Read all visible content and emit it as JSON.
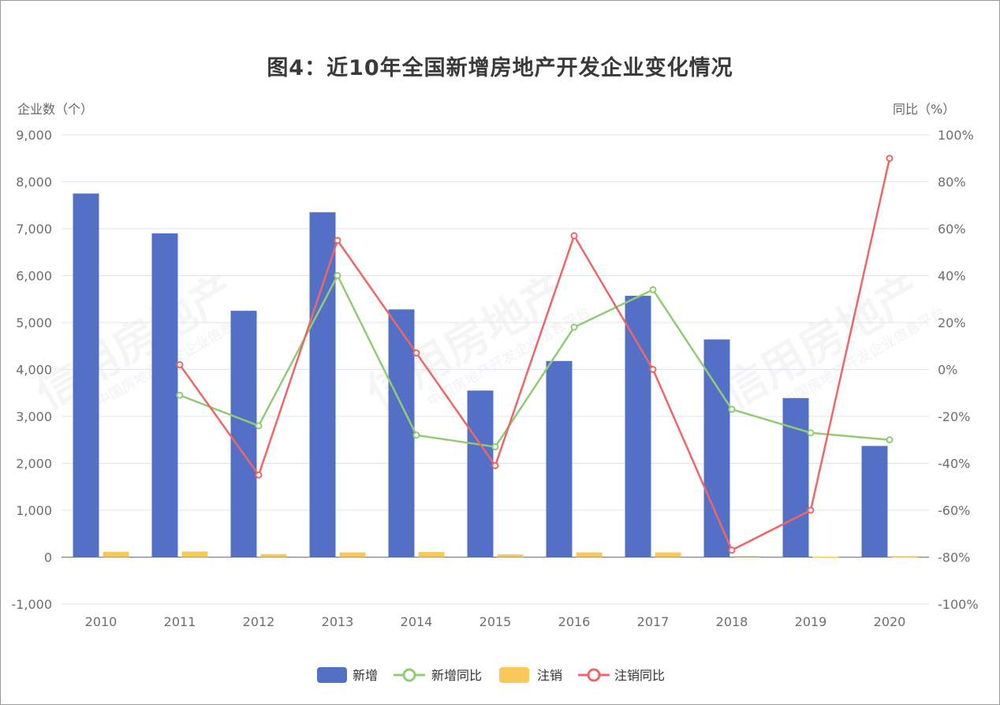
{
  "title": "图4：近10年全国新增房地产开发企业变化情况",
  "watermark": {
    "main": "信用房地产",
    "sub": "中国房地产开发企业信息平台"
  },
  "chart_data": {
    "type": "bar",
    "categories": [
      "2010",
      "2011",
      "2012",
      "2013",
      "2014",
      "2015",
      "2016",
      "2017",
      "2018",
      "2019",
      "2020"
    ],
    "y_left": {
      "label": "企业数（个）",
      "ylim": [
        -1000,
        9000
      ],
      "ticks": [
        "9,000",
        "8,000",
        "7,000",
        "6,000",
        "5,000",
        "4,000",
        "3,000",
        "2,000",
        "1,000",
        "0",
        "-1,000"
      ]
    },
    "y_right": {
      "label": "同比（%）",
      "ylim": [
        -100,
        100
      ],
      "ticks": [
        "100%",
        "80%",
        "60%",
        "40%",
        "20%",
        "0%",
        "-20%",
        "-40%",
        "-60%",
        "-80%",
        "-100%"
      ]
    },
    "series": [
      {
        "name": "新增",
        "type": "bar",
        "axis": "left",
        "color": "#5470c6",
        "values": [
          7750,
          6900,
          5250,
          7350,
          5280,
          3550,
          4180,
          5570,
          4640,
          3390,
          2370
        ]
      },
      {
        "name": "新增同比",
        "type": "line",
        "axis": "right",
        "color": "#91cc75",
        "values": [
          null,
          -11,
          -24,
          40,
          -28,
          -33,
          18,
          34,
          -17,
          -27,
          -30
        ]
      },
      {
        "name": "注销",
        "type": "bar",
        "axis": "left",
        "color": "#fac858",
        "values": [
          115,
          120,
          65,
          100,
          110,
          60,
          100,
          100,
          25,
          10,
          19
        ]
      },
      {
        "name": "注销同比",
        "type": "line",
        "axis": "right",
        "color": "#ee6666",
        "values": [
          null,
          2,
          -45,
          55,
          7,
          -41,
          57,
          0,
          -77,
          -60,
          90
        ]
      }
    ],
    "legend_position": "bottom-center",
    "grid": true
  }
}
